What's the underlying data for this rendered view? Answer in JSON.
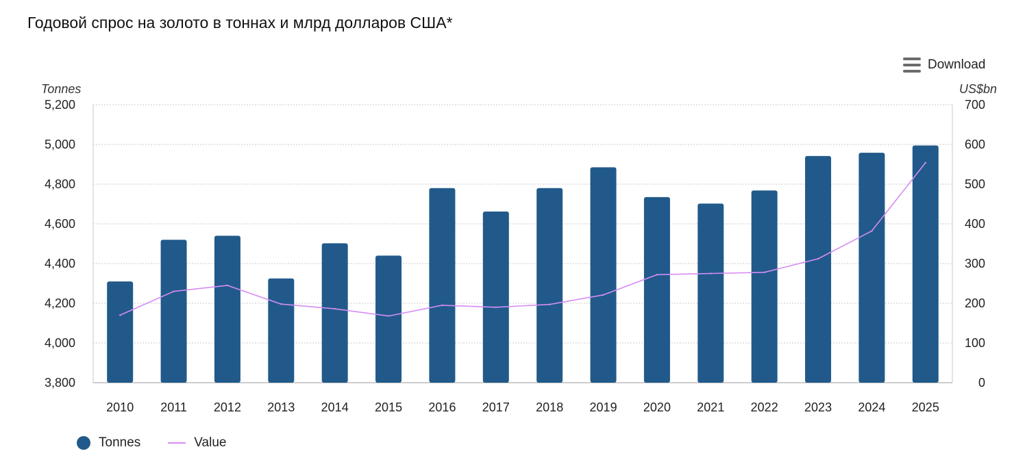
{
  "title": "Годовой спрос на золото в тоннах и млрд долларов США*",
  "download_label": "Download",
  "colors": {
    "bars": "#215a8a",
    "line": "#d58cf5",
    "grid": "#c8c8c8"
  },
  "chart_data": {
    "type": "bar",
    "categories": [
      "2010",
      "2011",
      "2012",
      "2013",
      "2014",
      "2015",
      "2016",
      "2017",
      "2018",
      "2019",
      "2020",
      "2021",
      "2022",
      "2023",
      "2024",
      "2025"
    ],
    "series": [
      {
        "name": "Tonnes",
        "type": "bar",
        "axis": "left",
        "values": [
          4310,
          4520,
          4540,
          4325,
          4502,
          4440,
          4780,
          4662,
          4780,
          4885,
          4735,
          4702,
          4768,
          4942,
          4958,
          4995
        ]
      },
      {
        "name": "Value",
        "type": "line",
        "axis": "right",
        "values": [
          170,
          230,
          245,
          198,
          186,
          168,
          195,
          190,
          197,
          221,
          272,
          275,
          278,
          312,
          382,
          554
        ]
      }
    ],
    "y_left": {
      "label": "Tonnes",
      "range": [
        3800,
        5200
      ],
      "ticks": [
        "3,800",
        "4,000",
        "4,200",
        "4,400",
        "4,600",
        "4,800",
        "5,000",
        "5,200"
      ]
    },
    "y_right": {
      "label": "US$bn",
      "range": [
        0,
        700
      ],
      "ticks": [
        "0",
        "100",
        "200",
        "300",
        "400",
        "500",
        "600",
        "700"
      ]
    },
    "grid": true,
    "legend": "bottom-left"
  }
}
